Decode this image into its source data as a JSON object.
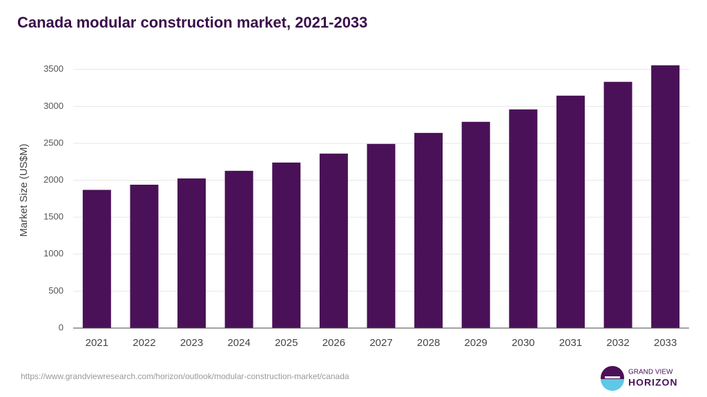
{
  "chart_data": {
    "type": "bar",
    "title": "Canada modular construction market, 2021-2033",
    "y_label": "Market Size (US$M)",
    "categories": [
      "2021",
      "2022",
      "2023",
      "2024",
      "2025",
      "2026",
      "2027",
      "2028",
      "2029",
      "2030",
      "2031",
      "2032",
      "2033"
    ],
    "values": [
      1870,
      1940,
      2025,
      2128,
      2240,
      2361,
      2492,
      2641,
      2791,
      2959,
      3145,
      3332,
      3556
    ],
    "color": "#4a1158",
    "ylim": [
      0,
      3600
    ],
    "yticks": [
      0,
      500,
      1000,
      1500,
      2000,
      2500,
      3000,
      3500
    ],
    "grid": true
  },
  "footer": {
    "source": "https://www.grandviewresearch.com/horizon/outlook/modular-construction-market/canada",
    "logo_top": "GRAND VIEW",
    "logo_bottom": "HORIZON"
  }
}
